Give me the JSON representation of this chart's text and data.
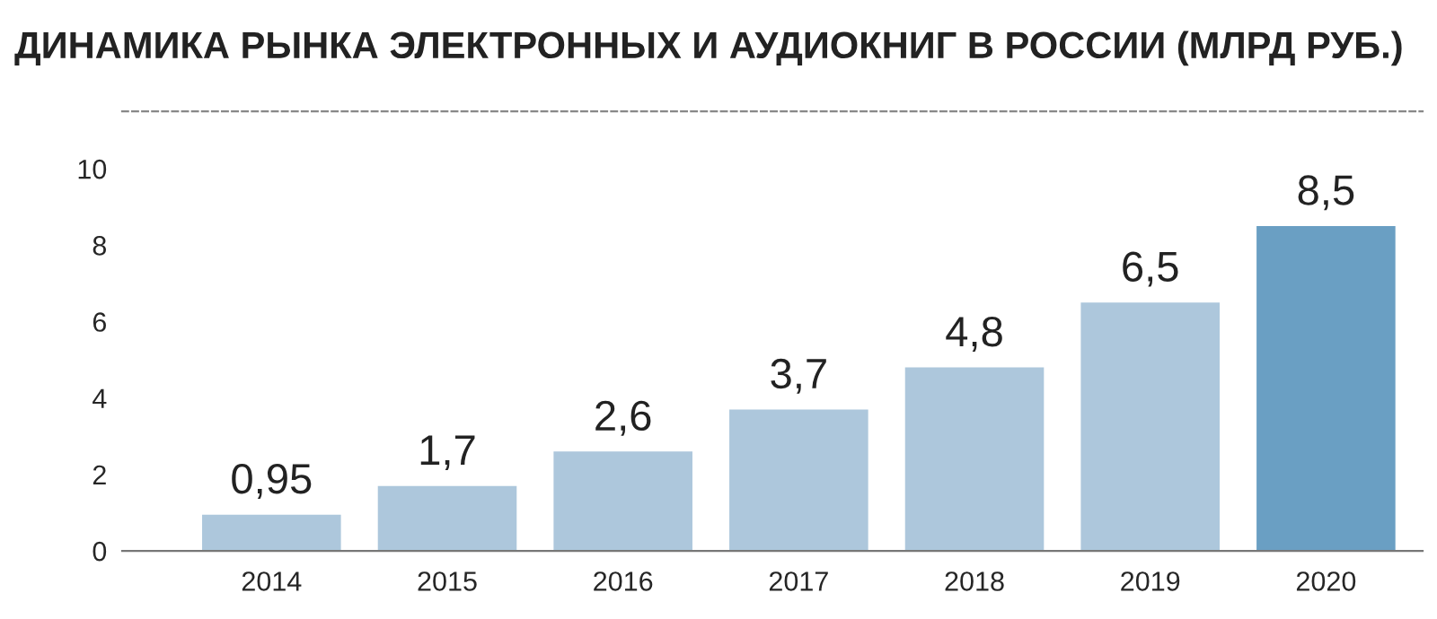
{
  "chart_data": {
    "type": "bar",
    "title": "ДИНАМИКА РЫНКА ЭЛЕКТРОННЫХ И АУДИОКНИГ В РОССИИ (МЛРД РУБ.)",
    "categories": [
      "2014",
      "2015",
      "2016",
      "2017",
      "2018",
      "2019",
      "2020"
    ],
    "values": [
      0.95,
      1.7,
      2.6,
      3.7,
      4.8,
      6.5,
      8.5
    ],
    "value_labels": [
      "0,95",
      "1,7",
      "2,6",
      "3,7",
      "4,8",
      "6,5",
      "8,5"
    ],
    "colors": [
      "#adc7dc",
      "#adc7dc",
      "#adc7dc",
      "#adc7dc",
      "#adc7dc",
      "#adc7dc",
      "#6a9fc3"
    ],
    "ylim": [
      0,
      11.5
    ],
    "yticks": [
      0,
      2,
      4,
      6,
      8,
      10
    ],
    "grid": false
  }
}
